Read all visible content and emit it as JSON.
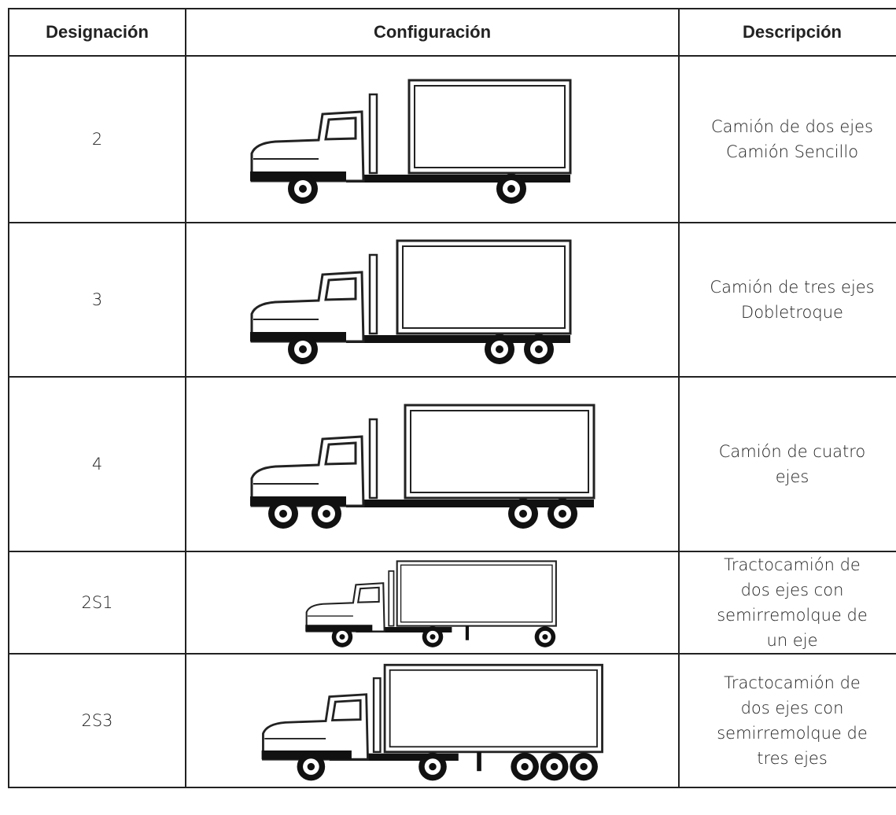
{
  "table": {
    "header": [
      "Designación",
      "Configuración",
      "Descripción"
    ],
    "rows": [
      {
        "designation": "2",
        "description": [
          "Camión de dos ejes",
          "Camión Sencillo"
        ]
      },
      {
        "designation": "3",
        "description": [
          "Camión de tres ejes",
          "Dobletroque"
        ]
      },
      {
        "designation": "4",
        "description": [
          "Camión de cuatro",
          "ejes"
        ]
      },
      {
        "designation": "2S1",
        "description": [
          "Tractocamión de",
          "dos ejes con",
          "semirremolque de",
          "un eje"
        ]
      },
      {
        "designation": "2S3",
        "description": [
          "Tractocamión de",
          "dos ejes con",
          "semirremolque de",
          "tres ejes"
        ]
      }
    ]
  }
}
